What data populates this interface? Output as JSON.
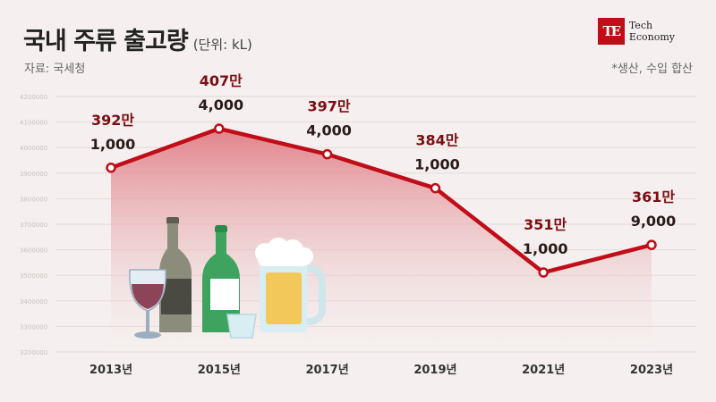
{
  "header": {
    "title": "국내 주류 출고량",
    "unit": "(단위: kL)",
    "source": "자료: 국세청",
    "note": "*생산, 수입 합산"
  },
  "logo": {
    "mark": "TE",
    "line1": "Tech",
    "line2": "Economy"
  },
  "colors": {
    "line": "#c00d17",
    "area_top": "#e07d85",
    "background": "#f5f0ef",
    "label": "#7a0e12"
  },
  "chart_data": {
    "type": "area",
    "x": [
      "2013년",
      "2015년",
      "2017년",
      "2019년",
      "2021년",
      "2023년"
    ],
    "values": [
      3921000,
      4074000,
      3974000,
      3841000,
      3511000,
      3619000
    ],
    "value_labels": [
      [
        "392만",
        "1,000"
      ],
      [
        "407만",
        "4,000"
      ],
      [
        "397만",
        "4,000"
      ],
      [
        "384만",
        "1,000"
      ],
      [
        "351만",
        "1,000"
      ],
      [
        "361만",
        "9,000"
      ]
    ],
    "y_ticks": [
      "3200000",
      "3300000",
      "3400000",
      "3500000",
      "3600000",
      "3700000",
      "3800000",
      "3900000",
      "4000000",
      "4100000",
      "4200000"
    ],
    "ylim": [
      3200000,
      4200000
    ],
    "grid": true,
    "legend": "none",
    "illustration": [
      "wine-glass-icon",
      "wine-bottle-icon",
      "soju-bottle-icon",
      "soju-shot-glass-icon",
      "beer-mug-icon"
    ]
  }
}
